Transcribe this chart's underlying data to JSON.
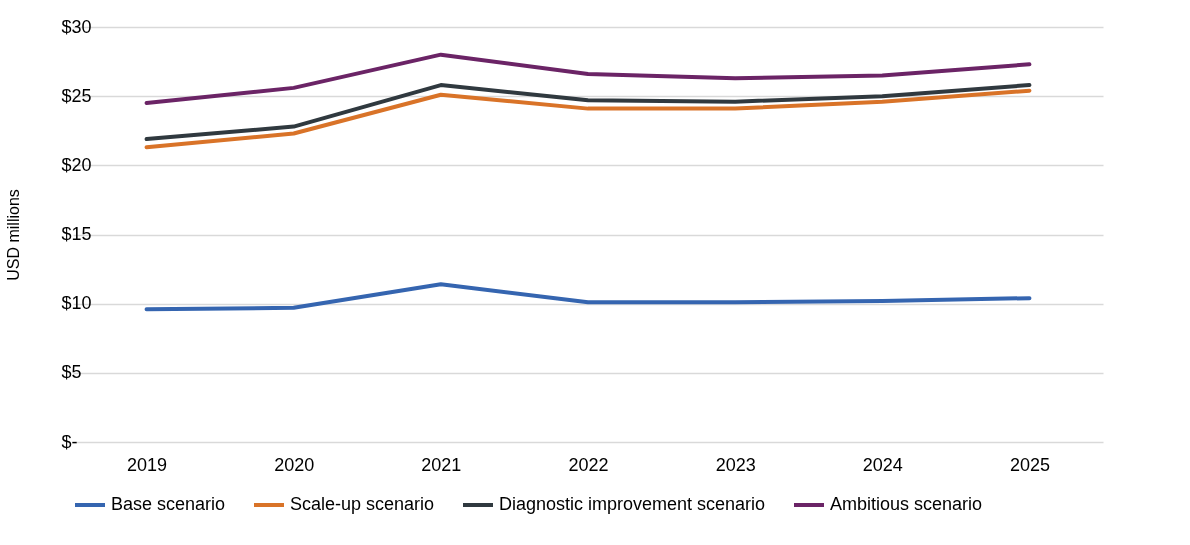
{
  "chart_data": {
    "type": "line",
    "ylabel": "USD millions",
    "categories": [
      "2019",
      "2020",
      "2021",
      "2022",
      "2023",
      "2024",
      "2025"
    ],
    "series": [
      {
        "name": "Base scenario",
        "color": "#3565b0",
        "values": [
          9.6,
          9.7,
          11.4,
          10.1,
          10.1,
          10.2,
          10.4
        ]
      },
      {
        "name": "Scale-up scenario",
        "color": "#d97328",
        "values": [
          21.3,
          22.3,
          25.1,
          24.1,
          24.1,
          24.6,
          25.4
        ]
      },
      {
        "name": "Diagnostic improvement scenario",
        "color": "#30393f",
        "values": [
          21.9,
          22.8,
          25.8,
          24.7,
          24.6,
          25.0,
          25.8
        ]
      },
      {
        "name": "Ambitious scenario",
        "color": "#6b2466",
        "values": [
          24.5,
          25.6,
          28.0,
          26.6,
          26.3,
          26.5,
          27.3
        ]
      }
    ],
    "ylim": [
      0,
      30
    ],
    "yticks": [
      {
        "value": 0,
        "label": "$-"
      },
      {
        "value": 5,
        "label": "$5"
      },
      {
        "value": 10,
        "label": "$10"
      },
      {
        "value": 15,
        "label": "$15"
      },
      {
        "value": 20,
        "label": "$20"
      },
      {
        "value": 25,
        "label": "$25"
      },
      {
        "value": 30,
        "label": "$30"
      }
    ],
    "grid": "y",
    "legend": "bottom",
    "marker": "none",
    "line_style": "solid"
  }
}
